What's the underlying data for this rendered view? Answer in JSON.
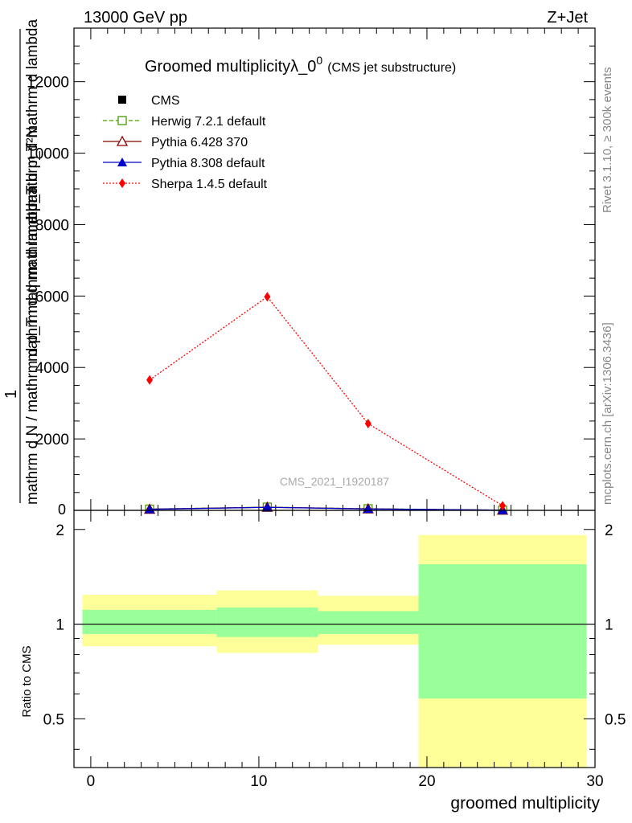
{
  "header": {
    "energy_label": "13000 GeV pp",
    "process_label": "Z+Jet"
  },
  "side_labels": {
    "rivet": "Rivet 3.1.10, ≥ 300k events",
    "mcplots": "mcplots.cern.ch [arXiv:1306.3436]"
  },
  "chart_data": {
    "type": "line",
    "title": "Groomed multiplicityλ_0",
    "title_superscript": "0",
    "subtitle": "(CMS jet substructure)",
    "watermark": "CMS_2021_I1920187",
    "xlabel": "groomed multiplicity",
    "ylabel_numerator": "mathrm d²N",
    "ylabel_numerator_alt": "mathrm d p_T mathrm d lambda",
    "ylabel_one": "1",
    "ylabel_denominator": "mathrm d N / mathrm d p_T mathrm d lambda",
    "ylabel_overlap": "mathrm d q mathrm d p_T",
    "xlim": [
      -1,
      30
    ],
    "ylim": [
      0,
      13500
    ],
    "x_ticks": [
      0,
      10,
      20,
      30
    ],
    "y_ticks": [
      2000,
      4000,
      6000,
      8000,
      10000,
      12000
    ],
    "y_tick_labels": [
      "2000",
      "4000",
      "6000",
      "8000",
      "10000",
      "12000"
    ],
    "y_zero_label": "0",
    "bins": [
      [
        -0.5,
        7.5
      ],
      [
        7.5,
        13.5
      ],
      [
        13.5,
        19.5
      ],
      [
        19.5,
        29.5
      ]
    ],
    "x": [
      3.5,
      10.5,
      16.5,
      24.5
    ],
    "series": [
      {
        "name": "CMS",
        "style": "data",
        "color": "#000000",
        "values": [
          30,
          80,
          40,
          5
        ]
      },
      {
        "name": "Herwig 7.2.1 default",
        "style": "open-square-dashed",
        "color": "#4c9a00",
        "values": [
          35,
          90,
          45,
          6
        ]
      },
      {
        "name": "Pythia 6.428 370",
        "style": "open-triangle-solid",
        "color": "#8b0000",
        "values": [
          32,
          88,
          42,
          5
        ]
      },
      {
        "name": "Pythia 8.308 default",
        "style": "filled-triangle-solid",
        "color": "#0000cc",
        "values": [
          30,
          85,
          40,
          5
        ]
      },
      {
        "name": "Sherpa 1.4.5 default",
        "style": "filled-diamond-dotted",
        "color": "#ff0000",
        "values": [
          3650,
          5980,
          2430,
          130
        ]
      }
    ],
    "ratio": {
      "ylabel": "Ratio to CMS",
      "ylim": [
        0.35,
        2.3
      ],
      "y_ticks": [
        0.5,
        1,
        2
      ],
      "y_tick_labels": [
        "0.5",
        "1",
        "2"
      ],
      "stat_band": {
        "low": [
          0.93,
          0.91,
          0.93,
          0.58
        ],
        "high": [
          1.11,
          1.13,
          1.1,
          1.55
        ],
        "color": "#99ff99"
      },
      "total_band": {
        "low": [
          0.85,
          0.81,
          0.86,
          0.35
        ],
        "high": [
          1.24,
          1.28,
          1.23,
          1.92
        ],
        "color": "#ffff99"
      }
    }
  }
}
